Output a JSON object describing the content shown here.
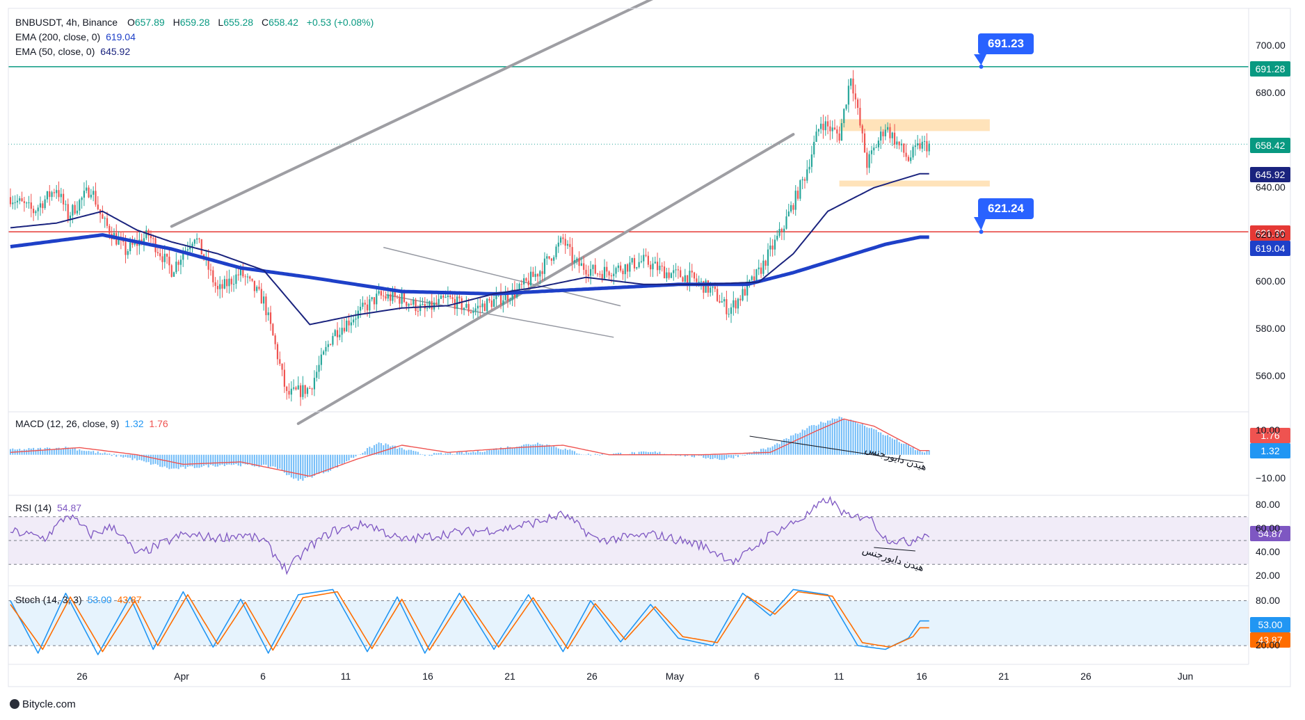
{
  "header": {
    "symbol": "BNBUSDT, 4h, Binance",
    "o_label": "O",
    "o": "657.89",
    "h_label": "H",
    "h": "659.28",
    "l_label": "L",
    "l": "655.28",
    "c_label": "C",
    "c": "658.42",
    "change": "+0.53 (+0.08%)"
  },
  "legends": {
    "ema200_label": "EMA (200, close, 0)",
    "ema200_value": "619.04",
    "ema50_label": "EMA (50, close, 0)",
    "ema50_value": "645.92",
    "macd_label": "MACD (12, 26, close, 9)",
    "macd_v1": "1.32",
    "macd_v2": "1.76",
    "rsi_label": "RSI (14)",
    "rsi_value": "54.87",
    "stoch_label": "Stoch (14, 3, 3)",
    "stoch_k": "53.00",
    "stoch_d": "43.87"
  },
  "badges": {
    "resistance": "691.28",
    "last": "658.42",
    "ema50": "645.92",
    "support": "621.30",
    "ema200": "619.04",
    "macd_signal": "1.76",
    "macd_line": "1.32",
    "rsi": "54.87",
    "stoch_k": "53.00",
    "stoch_d": "43.87"
  },
  "price_tags": {
    "upper": "691.23",
    "lower": "621.24"
  },
  "annotations": {
    "macd_divergence": "هیدن دایورجنس",
    "rsi_divergence": "هیدن دایورجنس"
  },
  "footer": {
    "brand": "Bitycle.com"
  },
  "colors": {
    "up": "#26a69a",
    "down": "#ef5350",
    "ema200": "#1e40c8",
    "ema50": "#1a237e",
    "resistance_line": "#089981",
    "support_line": "#e53935",
    "channel": "#9e9ea3",
    "zone": "#ffe0b2",
    "rsi": "#7e57c2",
    "stoch_k": "#2196f3",
    "stoch_d": "#ff6d00",
    "tag": "#2962ff"
  },
  "chart_data": {
    "type": "candlestick",
    "symbol": "BNBUSDT",
    "timeframe": "4h",
    "exchange": "Binance",
    "x_tick_labels": [
      "26",
      "Apr",
      "6",
      "11",
      "16",
      "21",
      "26",
      "May",
      "6",
      "11",
      "16",
      "21",
      "26",
      "Jun"
    ],
    "y_ticks": [
      560,
      580,
      600,
      620,
      640,
      660,
      680,
      700
    ],
    "ylim": [
      545,
      716
    ],
    "anchors_price": [
      [
        0,
        636
      ],
      [
        10,
        630
      ],
      [
        20,
        640
      ],
      [
        25,
        628
      ],
      [
        35,
        640
      ],
      [
        40,
        626
      ],
      [
        50,
        613
      ],
      [
        60,
        620
      ],
      [
        70,
        605
      ],
      [
        80,
        620
      ],
      [
        90,
        596
      ],
      [
        100,
        604
      ],
      [
        110,
        592
      ],
      [
        115,
        573
      ],
      [
        120,
        552
      ],
      [
        130,
        555
      ],
      [
        140,
        578
      ],
      [
        150,
        586
      ],
      [
        160,
        594
      ],
      [
        170,
        593
      ],
      [
        180,
        588
      ],
      [
        190,
        593
      ],
      [
        200,
        588
      ],
      [
        210,
        592
      ],
      [
        220,
        596
      ],
      [
        230,
        605
      ],
      [
        240,
        618
      ],
      [
        245,
        608
      ],
      [
        255,
        604
      ],
      [
        265,
        606
      ],
      [
        275,
        609
      ],
      [
        285,
        604
      ],
      [
        295,
        602
      ],
      [
        305,
        596
      ],
      [
        312,
        588
      ],
      [
        318,
        595
      ],
      [
        325,
        604
      ],
      [
        335,
        622
      ],
      [
        345,
        645
      ],
      [
        352,
        668
      ],
      [
        360,
        662
      ],
      [
        365,
        688
      ],
      [
        372,
        650
      ],
      [
        380,
        666
      ],
      [
        390,
        652
      ],
      [
        395,
        658
      ]
    ],
    "ema50_anchors": [
      [
        0,
        623
      ],
      [
        20,
        625
      ],
      [
        40,
        630
      ],
      [
        55,
        622
      ],
      [
        70,
        617
      ],
      [
        90,
        612
      ],
      [
        110,
        605
      ],
      [
        130,
        582
      ],
      [
        150,
        586
      ],
      [
        170,
        589
      ],
      [
        190,
        590
      ],
      [
        210,
        595
      ],
      [
        230,
        598
      ],
      [
        250,
        602
      ],
      [
        275,
        599
      ],
      [
        300,
        599
      ],
      [
        325,
        600
      ],
      [
        340,
        612
      ],
      [
        355,
        630
      ],
      [
        375,
        640
      ],
      [
        395,
        645.92
      ]
    ],
    "ema200_anchors": [
      [
        0,
        615
      ],
      [
        40,
        620
      ],
      [
        70,
        614
      ],
      [
        100,
        606
      ],
      [
        130,
        602
      ],
      [
        170,
        596
      ],
      [
        210,
        595
      ],
      [
        250,
        597
      ],
      [
        290,
        599
      ],
      [
        320,
        599
      ],
      [
        340,
        604
      ],
      [
        360,
        610
      ],
      [
        380,
        616
      ],
      [
        395,
        619.04
      ]
    ],
    "macd_anchors": [
      [
        0,
        2
      ],
      [
        25,
        3
      ],
      [
        50,
        -1
      ],
      [
        70,
        -6
      ],
      [
        95,
        -4
      ],
      [
        115,
        -5
      ],
      [
        125,
        -11
      ],
      [
        140,
        -6
      ],
      [
        160,
        5
      ],
      [
        180,
        0
      ],
      [
        200,
        1
      ],
      [
        230,
        5
      ],
      [
        250,
        0
      ],
      [
        280,
        1
      ],
      [
        310,
        -2
      ],
      [
        330,
        3
      ],
      [
        348,
        12
      ],
      [
        360,
        16
      ],
      [
        372,
        12
      ],
      [
        385,
        6
      ],
      [
        395,
        1.32
      ]
    ],
    "macd_signal_anchors": [
      [
        0,
        1
      ],
      [
        30,
        3
      ],
      [
        55,
        0
      ],
      [
        75,
        -4
      ],
      [
        100,
        -3
      ],
      [
        120,
        -7
      ],
      [
        130,
        -9
      ],
      [
        150,
        -2
      ],
      [
        170,
        4
      ],
      [
        190,
        1
      ],
      [
        220,
        3
      ],
      [
        240,
        4
      ],
      [
        260,
        0
      ],
      [
        300,
        0
      ],
      [
        330,
        1
      ],
      [
        350,
        10
      ],
      [
        362,
        15
      ],
      [
        375,
        12
      ],
      [
        395,
        1.76
      ]
    ],
    "macd_ylim": [
      -17,
      18
    ],
    "macd_ticks": [
      10,
      -10
    ],
    "rsi_anchors": [
      [
        0,
        58
      ],
      [
        15,
        52
      ],
      [
        25,
        72
      ],
      [
        35,
        55
      ],
      [
        45,
        62
      ],
      [
        55,
        38
      ],
      [
        75,
        55
      ],
      [
        90,
        52
      ],
      [
        100,
        55
      ],
      [
        110,
        50
      ],
      [
        120,
        25
      ],
      [
        130,
        45
      ],
      [
        140,
        58
      ],
      [
        155,
        64
      ],
      [
        170,
        50
      ],
      [
        190,
        56
      ],
      [
        215,
        60
      ],
      [
        230,
        66
      ],
      [
        240,
        72
      ],
      [
        255,
        50
      ],
      [
        280,
        55
      ],
      [
        300,
        46
      ],
      [
        315,
        32
      ],
      [
        330,
        55
      ],
      [
        345,
        70
      ],
      [
        355,
        85
      ],
      [
        365,
        68
      ],
      [
        372,
        72
      ],
      [
        380,
        52
      ],
      [
        390,
        48
      ],
      [
        395,
        54.87
      ]
    ],
    "rsi_ylim": [
      12,
      88
    ],
    "rsi_ticks": [
      80,
      60,
      40,
      20
    ],
    "rsi_band": [
      30,
      70
    ],
    "stoch_k_anchors": [
      [
        0,
        80
      ],
      [
        12,
        10
      ],
      [
        24,
        90
      ],
      [
        38,
        8
      ],
      [
        52,
        85
      ],
      [
        62,
        15
      ],
      [
        75,
        92
      ],
      [
        88,
        18
      ],
      [
        100,
        82
      ],
      [
        112,
        10
      ],
      [
        125,
        88
      ],
      [
        140,
        95
      ],
      [
        155,
        12
      ],
      [
        168,
        85
      ],
      [
        180,
        10
      ],
      [
        195,
        90
      ],
      [
        210,
        15
      ],
      [
        225,
        88
      ],
      [
        240,
        12
      ],
      [
        252,
        80
      ],
      [
        265,
        25
      ],
      [
        278,
        75
      ],
      [
        290,
        30
      ],
      [
        305,
        20
      ],
      [
        318,
        90
      ],
      [
        330,
        60
      ],
      [
        340,
        95
      ],
      [
        355,
        88
      ],
      [
        368,
        20
      ],
      [
        380,
        15
      ],
      [
        390,
        30
      ],
      [
        395,
        53
      ]
    ],
    "stoch_d_anchors": [
      [
        0,
        75
      ],
      [
        14,
        15
      ],
      [
        26,
        85
      ],
      [
        40,
        12
      ],
      [
        54,
        80
      ],
      [
        64,
        20
      ],
      [
        77,
        88
      ],
      [
        90,
        22
      ],
      [
        102,
        78
      ],
      [
        114,
        14
      ],
      [
        127,
        84
      ],
      [
        142,
        92
      ],
      [
        157,
        16
      ],
      [
        170,
        82
      ],
      [
        182,
        14
      ],
      [
        197,
        86
      ],
      [
        212,
        18
      ],
      [
        227,
        84
      ],
      [
        242,
        16
      ],
      [
        254,
        76
      ],
      [
        267,
        28
      ],
      [
        280,
        72
      ],
      [
        292,
        32
      ],
      [
        307,
        24
      ],
      [
        320,
        86
      ],
      [
        332,
        62
      ],
      [
        342,
        92
      ],
      [
        357,
        86
      ],
      [
        370,
        24
      ],
      [
        382,
        18
      ],
      [
        392,
        32
      ],
      [
        395,
        43.87
      ]
    ],
    "stoch_ylim": [
      -5,
      100
    ],
    "stoch_ticks": [
      80,
      20
    ],
    "stoch_band": [
      20,
      80
    ],
    "levels": {
      "resistance": 691.28,
      "support": 621.3,
      "last_close": 658.42
    },
    "channel_upper": [
      [
        70,
        623.6
      ],
      [
        295,
        727.5
      ]
    ],
    "channel_lower": [
      [
        125,
        540
      ],
      [
        340,
        662.6
      ]
    ],
    "zones": [
      [
        664,
        669
      ],
      [
        640.5,
        643
      ]
    ],
    "wedge_lines": [
      [
        [
          162,
          614.7
        ],
        [
          265,
          589.9
        ]
      ],
      [
        [
          163,
          594.6
        ],
        [
          262,
          576.6
        ]
      ]
    ]
  }
}
